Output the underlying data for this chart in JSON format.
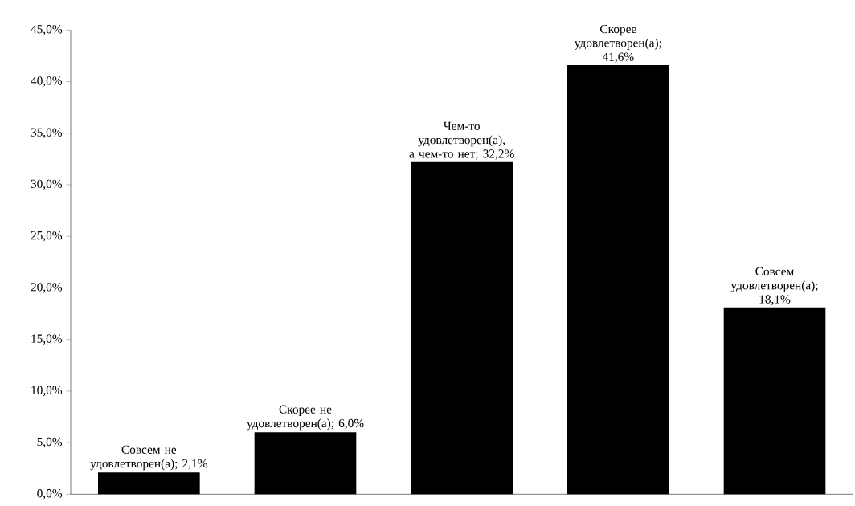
{
  "chart_data": {
    "type": "bar",
    "categories": [
      null,
      null,
      null,
      null,
      null
    ],
    "values": [
      2.1,
      6.0,
      32.2,
      41.6,
      18.1
    ],
    "color": "#000000",
    "value_labels": [
      "Совсем не удовлетворен(а); 2,1%",
      "Скорее не удовлетворен(а); 6,0%",
      "Чем-то удовлетворен(а), а чем-то нет; 32,2%",
      "Скорее удовлетворен(а); 41,6%",
      "Совсем удовлетворен(а); 18,1%"
    ],
    "ylim": [
      0,
      45
    ],
    "yticks": [
      {
        "value": 0,
        "label": "0,0%"
      },
      {
        "value": 5,
        "label": "5,0%"
      },
      {
        "value": 10,
        "label": "10,0%"
      },
      {
        "value": 15,
        "label": "15,0%"
      },
      {
        "value": 20,
        "label": "20,0%"
      },
      {
        "value": 25,
        "label": "25,0%"
      },
      {
        "value": 30,
        "label": "30,0%"
      },
      {
        "value": 35,
        "label": "35,0%"
      },
      {
        "value": 40,
        "label": "40,0%"
      },
      {
        "value": 45,
        "label": "45,0%"
      }
    ],
    "ylabel": null
  }
}
